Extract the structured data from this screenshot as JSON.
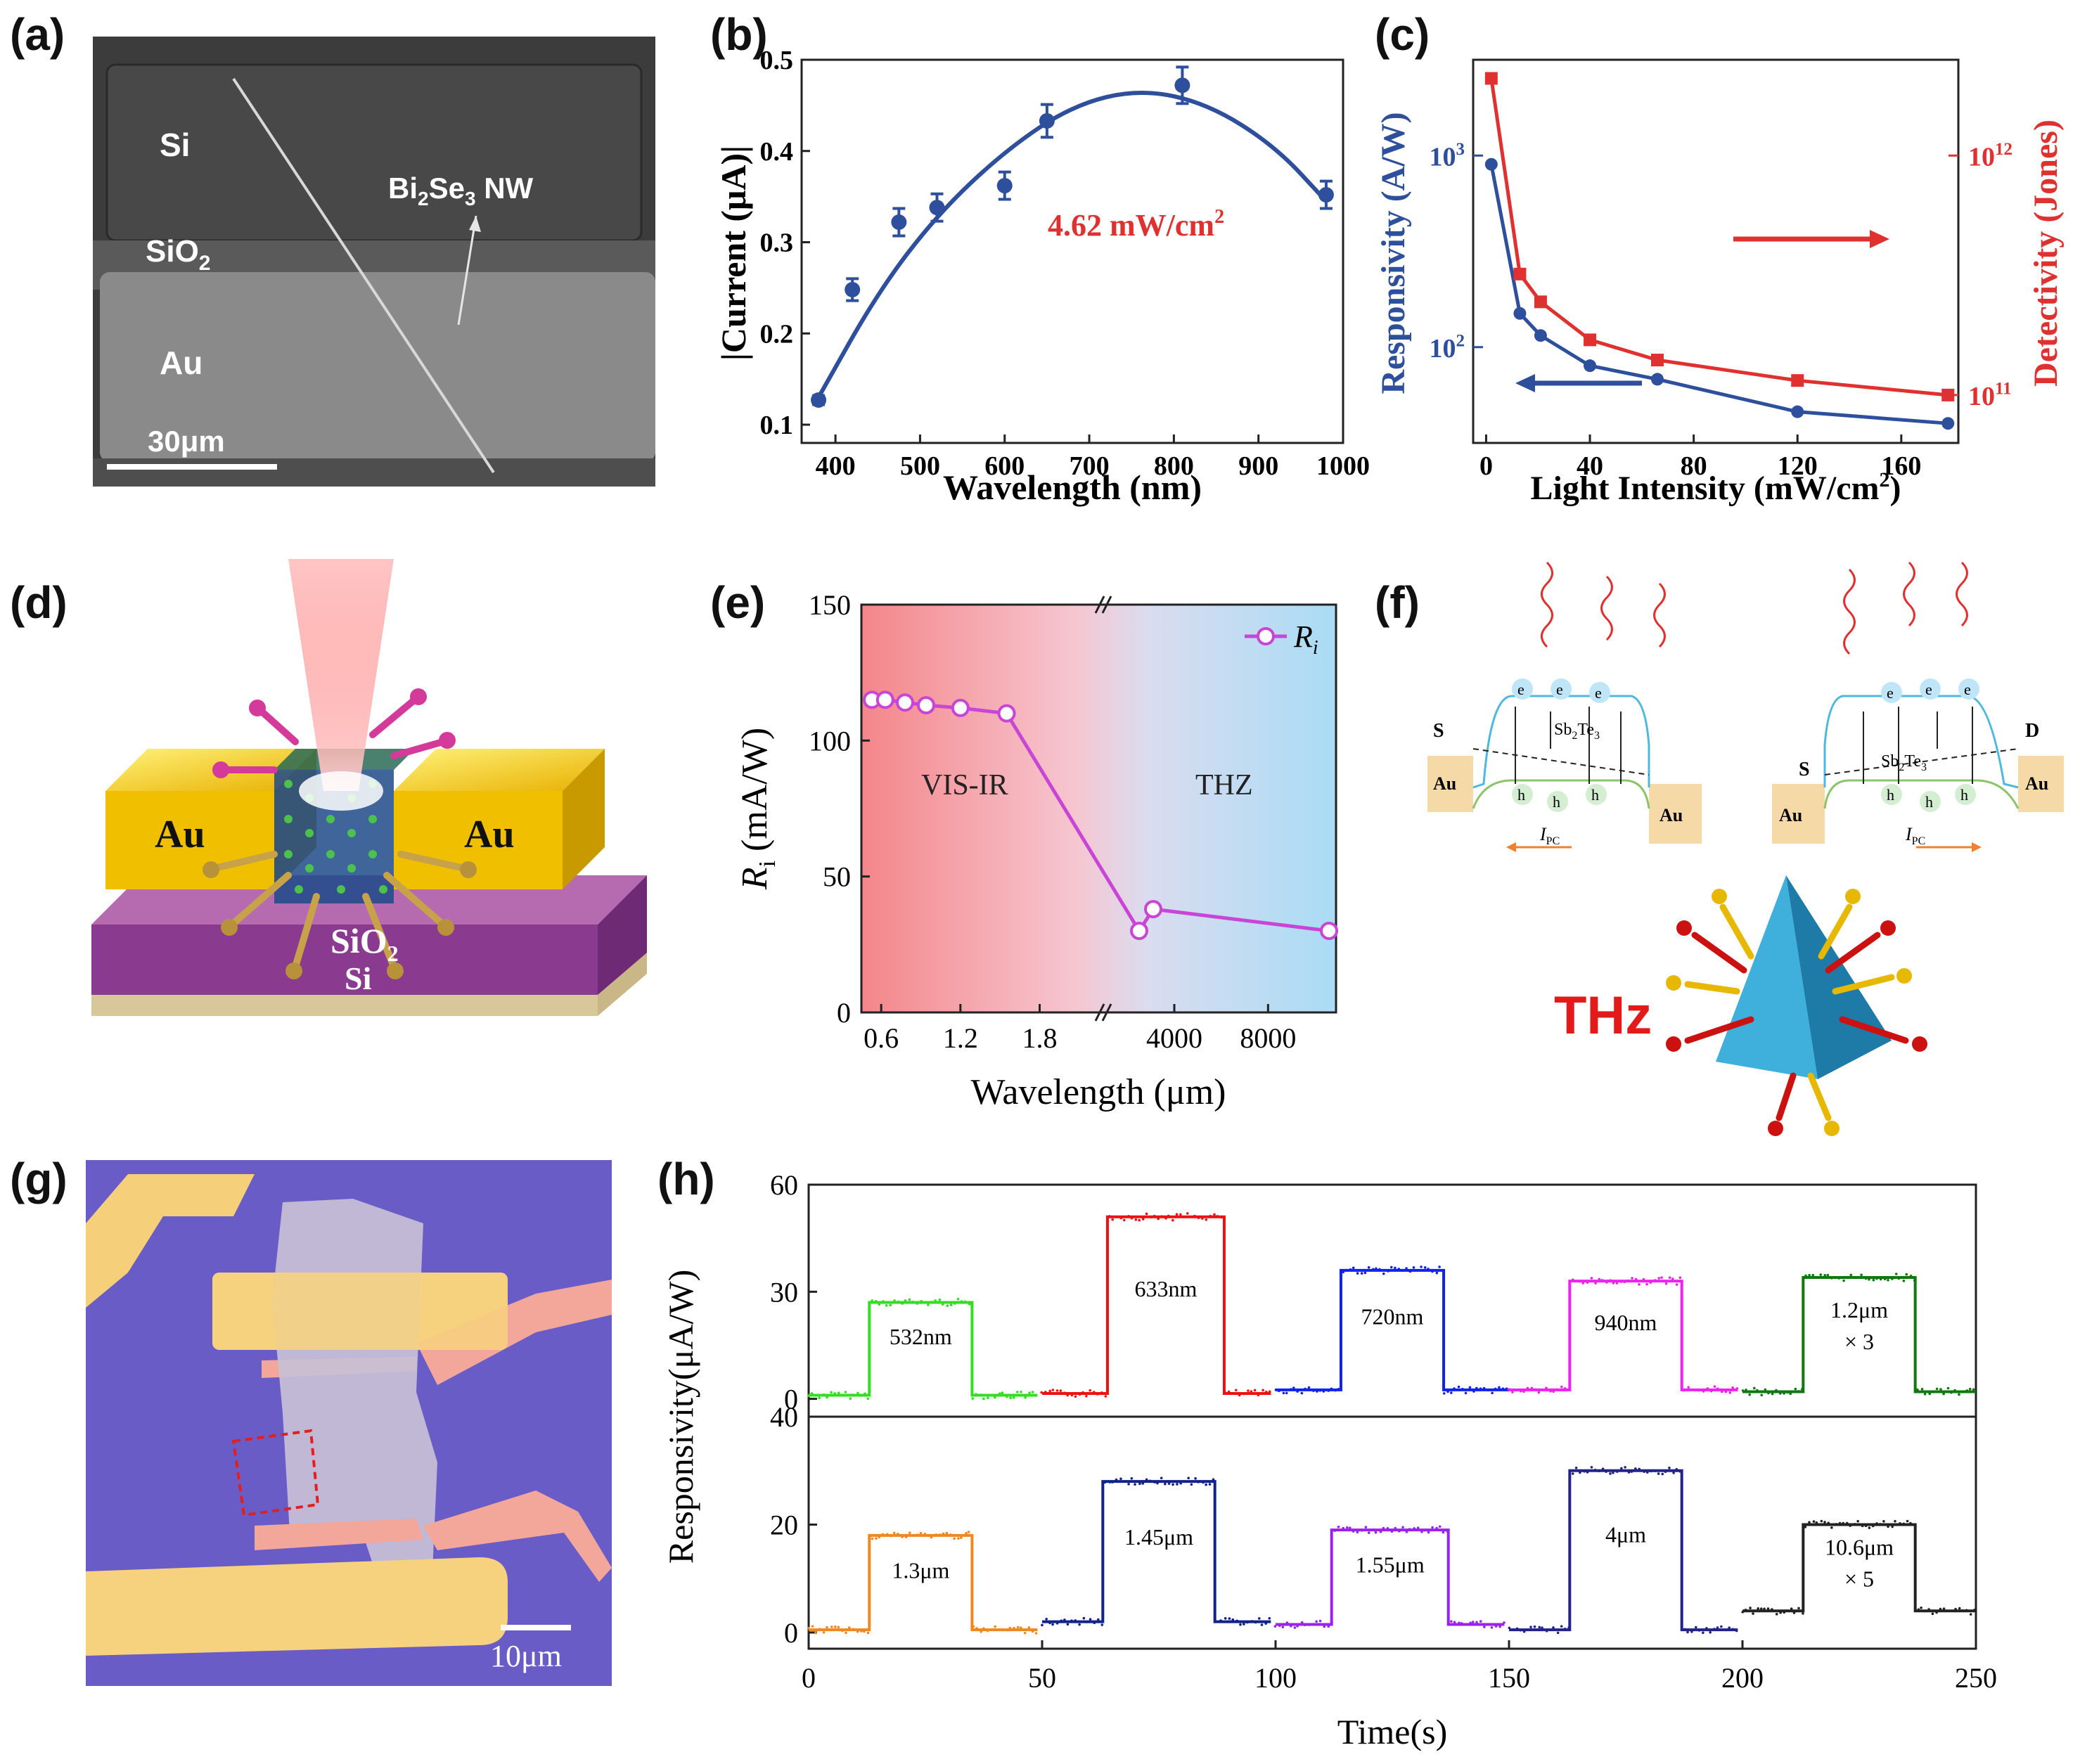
{
  "labels": {
    "a": "(a)",
    "b": "(b)",
    "c": "(c)",
    "d": "(d)",
    "e": "(e)",
    "f": "(f)",
    "g": "(g)",
    "h": "(h)"
  },
  "panel_a": {
    "si": "Si",
    "sio2": "SiO",
    "au": "Au",
    "nw": "Bi",
    "nw_se": "Se",
    "nw_suffix": " NW",
    "scale": "30μm",
    "sub2": "2",
    "sub3": "3"
  },
  "panel_d": {
    "au_left": "Au",
    "au_right": "Au",
    "sio2": "SiO",
    "sio2_sub": "2",
    "si": "Si"
  },
  "panel_f": {
    "e": "e",
    "h": "h",
    "s": "S",
    "d": "D",
    "au": "Au",
    "material": "Sb",
    "material_sub1": "2",
    "material_mid": "Te",
    "material_sub2": "3",
    "ipc": "I",
    "ipc_sub": "PC",
    "thz": "THz"
  },
  "panel_g": {
    "scale": "10μm"
  },
  "chart_data": [
    {
      "id": "b",
      "type": "scatter",
      "title": "",
      "xlabel": "Wavelength (nm)",
      "ylabel": "|Current (μA)|",
      "annotation": "4.62 mW/cm",
      "annotation_sup": "2",
      "xlim": [
        360,
        1000
      ],
      "ylim": [
        0.08,
        0.5
      ],
      "xticks": [
        400,
        500,
        600,
        700,
        800,
        900,
        1000
      ],
      "yticks": [
        0.1,
        0.2,
        0.3,
        0.4,
        0.5
      ],
      "x": [
        380,
        420,
        475,
        520,
        600,
        650,
        810,
        980
      ],
      "y": [
        0.127,
        0.248,
        0.322,
        0.338,
        0.362,
        0.433,
        0.472,
        0.352
      ],
      "err": [
        0.005,
        0.012,
        0.015,
        0.015,
        0.015,
        0.018,
        0.02,
        0.015
      ],
      "fit": {
        "x": [
          380,
          450,
          520,
          600,
          680,
          760,
          840,
          920,
          980
        ],
        "y": [
          0.13,
          0.245,
          0.33,
          0.4,
          0.45,
          0.468,
          0.452,
          0.405,
          0.345
        ]
      },
      "color": "#2e4f9c",
      "annotation_color": "#e03131"
    },
    {
      "id": "c",
      "type": "line",
      "xlabel": "Light Intensity (mW/cm",
      "xlabel_sup": "2",
      "xlabel_end": ")",
      "ylabel_left": "Responsivity (A/W)",
      "ylabel_right": "Detectivity (Jones)",
      "xlim": [
        -5,
        182
      ],
      "xticks": [
        0,
        40,
        80,
        120,
        160
      ],
      "left_ylim_log": [
        1.5,
        3.5
      ],
      "left_ticks": [
        {
          "exp": 2,
          "label": "10",
          "sup": "2"
        },
        {
          "exp": 3,
          "label": "10",
          "sup": "3"
        }
      ],
      "right_ylim_log": [
        10.8,
        12.4
      ],
      "right_ticks": [
        {
          "exp": 11,
          "label": "10",
          "sup": "11"
        },
        {
          "exp": 12,
          "label": "10",
          "sup": "12"
        }
      ],
      "series": [
        {
          "name": "Responsivity",
          "axis": "left",
          "color": "#2e4f9c",
          "marker": "circle",
          "x": [
            2,
            13,
            21,
            40,
            66,
            120,
            178
          ],
          "y": [
            900,
            150,
            115,
            80,
            68,
            46,
            40
          ]
        },
        {
          "name": "Detectivity",
          "axis": "right",
          "color": "#e03131",
          "marker": "square",
          "x": [
            2,
            13,
            21,
            40,
            66,
            120,
            178
          ],
          "y": [
            2100000000000.0,
            320000000000.0,
            245000000000.0,
            170000000000.0,
            140000000000.0,
            115000000000.0,
            100000000000.0
          ]
        }
      ]
    },
    {
      "id": "e",
      "type": "line",
      "xlabel": "Wavelength (μm)",
      "ylabel": "R",
      "ylabel_sub": "i",
      "ylabel_end": " (mA/W)",
      "legend": "R",
      "legend_sub": "i",
      "region_labels": [
        "VIS-IR",
        "THZ"
      ],
      "xticks": [
        "0.6",
        "1.2",
        "1.8",
        "4000",
        "8000"
      ],
      "ylim": [
        0,
        150
      ],
      "yticks": [
        0,
        50,
        100,
        150
      ],
      "x": [
        0.53,
        0.63,
        0.78,
        0.94,
        1.2,
        1.55,
        2500,
        3100,
        10600
      ],
      "y": [
        115,
        115,
        114,
        113,
        112,
        110,
        30,
        38,
        30
      ],
      "color": "#c945d6"
    },
    {
      "id": "h",
      "type": "line",
      "xlabel": "Time(s)",
      "ylabel": "Responsivity(μA/W)",
      "xlim": [
        0,
        250
      ],
      "xticks": [
        0,
        50,
        100,
        150,
        200,
        250
      ],
      "top": {
        "ylim": [
          -5,
          60
        ],
        "yticks": [
          0,
          30,
          60
        ],
        "series": [
          {
            "name": "532nm",
            "label": "532nm",
            "color": "#33dd22",
            "t0": 0,
            "t_on": 13,
            "t_off": 35,
            "t1": 49,
            "base": 1,
            "on": 27
          },
          {
            "name": "633nm",
            "label": "633nm",
            "color": "#ee1111",
            "t0": 50,
            "t_on": 64,
            "t_off": 89,
            "t1": 99,
            "base": 1.5,
            "on": 51
          },
          {
            "name": "720nm",
            "label": "720nm",
            "color": "#1122ee",
            "t0": 100,
            "t_on": 114,
            "t_off": 136,
            "t1": 150,
            "base": 2.5,
            "on": 36
          },
          {
            "name": "940nm",
            "label": "940nm",
            "color": "#ee22ee",
            "t0": 150,
            "t_on": 163,
            "t_off": 187,
            "t1": 199,
            "base": 2.5,
            "on": 33
          },
          {
            "name": "1.2μm",
            "label": "1.2μm",
            "label2": "× 3",
            "color": "#117711",
            "t0": 200,
            "t_on": 213,
            "t_off": 237,
            "t1": 250,
            "base": 2,
            "on": 34
          }
        ]
      },
      "bottom": {
        "ylim": [
          -3,
          40
        ],
        "yticks": [
          0,
          20,
          40
        ],
        "series": [
          {
            "name": "1.3μm",
            "label": "1.3μm",
            "color": "#ee8822",
            "t0": 0,
            "t_on": 13,
            "t_off": 35,
            "t1": 49,
            "base": 0.5,
            "on": 18
          },
          {
            "name": "1.45μm",
            "label": "1.45μm",
            "color": "#112288",
            "t0": 50,
            "t_on": 63,
            "t_off": 87,
            "t1": 99,
            "base": 2,
            "on": 28
          },
          {
            "name": "1.55μm",
            "label": "1.55μm",
            "color": "#9922ee",
            "t0": 100,
            "t_on": 112,
            "t_off": 137,
            "t1": 149,
            "base": 1.5,
            "on": 19
          },
          {
            "name": "4μm",
            "label": "4μm",
            "color": "#222288",
            "t0": 150,
            "t_on": 163,
            "t_off": 187,
            "t1": 199,
            "base": 0.5,
            "on": 30
          },
          {
            "name": "10.6μm",
            "label": "10.6μm",
            "label2": "× 5",
            "color": "#222222",
            "t0": 200,
            "t_on": 213,
            "t_off": 237,
            "t1": 250,
            "base": 4,
            "on": 20
          }
        ]
      }
    }
  ],
  "colors": {
    "blue": "#2e4f9c",
    "red": "#e03131",
    "magenta": "#c945d6",
    "gold": "#e8c32a",
    "purple": "#8a3a8f"
  }
}
